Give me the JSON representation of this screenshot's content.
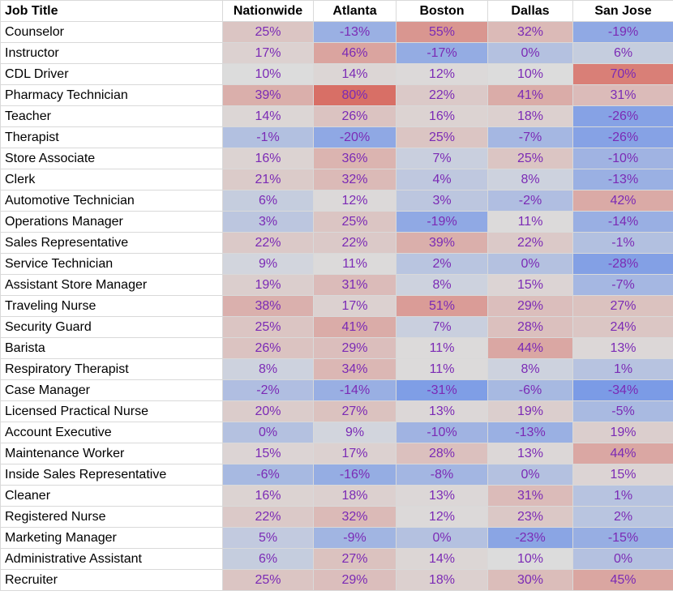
{
  "chart_data": {
    "type": "heatmap",
    "columns": [
      "Job Title",
      "Nationwide",
      "Atlanta",
      "Boston",
      "Dallas",
      "San Jose"
    ],
    "rows": [
      {
        "job": "Counselor",
        "values": [
          25,
          -13,
          55,
          32,
          -19
        ]
      },
      {
        "job": "Instructor",
        "values": [
          17,
          46,
          -17,
          0,
          6
        ]
      },
      {
        "job": "CDL Driver",
        "values": [
          10,
          14,
          12,
          10,
          70
        ]
      },
      {
        "job": "Pharmacy Technician",
        "values": [
          39,
          80,
          22,
          41,
          31
        ]
      },
      {
        "job": "Teacher",
        "values": [
          14,
          26,
          16,
          18,
          -26
        ]
      },
      {
        "job": "Therapist",
        "values": [
          -1,
          -20,
          25,
          -7,
          -26
        ]
      },
      {
        "job": "Store Associate",
        "values": [
          16,
          36,
          7,
          25,
          -10
        ]
      },
      {
        "job": "Clerk",
        "values": [
          21,
          32,
          4,
          8,
          -13
        ]
      },
      {
        "job": "Automotive Technician",
        "values": [
          6,
          12,
          3,
          -2,
          42
        ]
      },
      {
        "job": "Operations Manager",
        "values": [
          3,
          25,
          -19,
          11,
          -14
        ]
      },
      {
        "job": "Sales Representative",
        "values": [
          22,
          22,
          39,
          22,
          -1
        ]
      },
      {
        "job": "Service Technician",
        "values": [
          9,
          11,
          2,
          0,
          -28
        ]
      },
      {
        "job": "Assistant Store Manager",
        "values": [
          19,
          31,
          8,
          15,
          -7
        ]
      },
      {
        "job": "Traveling Nurse",
        "values": [
          38,
          17,
          51,
          29,
          27
        ]
      },
      {
        "job": "Security Guard",
        "values": [
          25,
          41,
          7,
          28,
          24
        ]
      },
      {
        "job": "Barista",
        "values": [
          26,
          29,
          11,
          44,
          13
        ]
      },
      {
        "job": "Respiratory Therapist",
        "values": [
          8,
          34,
          11,
          8,
          1
        ]
      },
      {
        "job": "Case Manager",
        "values": [
          -2,
          -14,
          -31,
          -6,
          -34
        ]
      },
      {
        "job": "Licensed Practical Nurse",
        "values": [
          20,
          27,
          13,
          19,
          -5
        ]
      },
      {
        "job": "Account Executive",
        "values": [
          0,
          9,
          -10,
          -13,
          19
        ]
      },
      {
        "job": "Maintenance Worker",
        "values": [
          15,
          17,
          28,
          13,
          44
        ]
      },
      {
        "job": "Inside Sales Representative",
        "values": [
          -6,
          -16,
          -8,
          0,
          15
        ]
      },
      {
        "job": "Cleaner",
        "values": [
          16,
          18,
          13,
          31,
          1
        ]
      },
      {
        "job": "Registered Nurse",
        "values": [
          22,
          32,
          12,
          23,
          2
        ]
      },
      {
        "job": "Marketing Manager",
        "values": [
          5,
          -9,
          0,
          -23,
          -15
        ]
      },
      {
        "job": "Administrative Assistant",
        "values": [
          6,
          27,
          14,
          10,
          0
        ]
      },
      {
        "job": "Recruiter",
        "values": [
          25,
          29,
          18,
          30,
          45
        ]
      }
    ],
    "value_suffix": "%",
    "colors": {
      "negative": "#7b9be6",
      "neutral": "#dcdcdc",
      "positive": "#d86f66",
      "value_text": "#7b2ab5",
      "grid": "#d9d9d9"
    }
  }
}
